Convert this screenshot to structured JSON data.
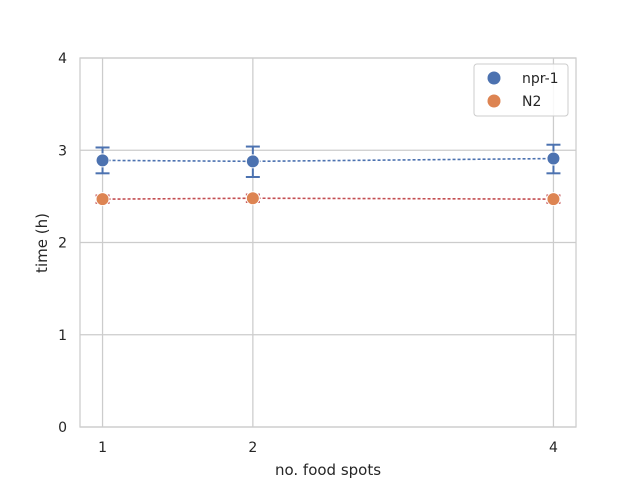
{
  "chart_data": {
    "type": "scatter",
    "xlabel": "no. food spots",
    "ylabel": "time (h)",
    "x_ticks": [
      1,
      2,
      4
    ],
    "y_ticks": [
      0,
      1,
      2,
      3,
      4
    ],
    "xlim": [
      0.85,
      4.15
    ],
    "ylim": [
      0,
      4
    ],
    "grid": true,
    "legend_position": "top-right",
    "series": [
      {
        "name": "npr-1",
        "color": "#4c72b0",
        "line_color": "#4c72b0",
        "x": [
          1,
          2,
          4
        ],
        "y": [
          2.89,
          2.88,
          2.91
        ],
        "err_low": [
          2.75,
          2.71,
          2.75
        ],
        "err_high": [
          3.03,
          3.04,
          3.06
        ]
      },
      {
        "name": "N2",
        "color": "#dd8452",
        "line_color": "#c44e52",
        "x": [
          1,
          2,
          4
        ],
        "y": [
          2.47,
          2.48,
          2.47
        ],
        "err_low": [
          2.43,
          2.44,
          2.43
        ],
        "err_high": [
          2.51,
          2.52,
          2.51
        ]
      }
    ]
  }
}
